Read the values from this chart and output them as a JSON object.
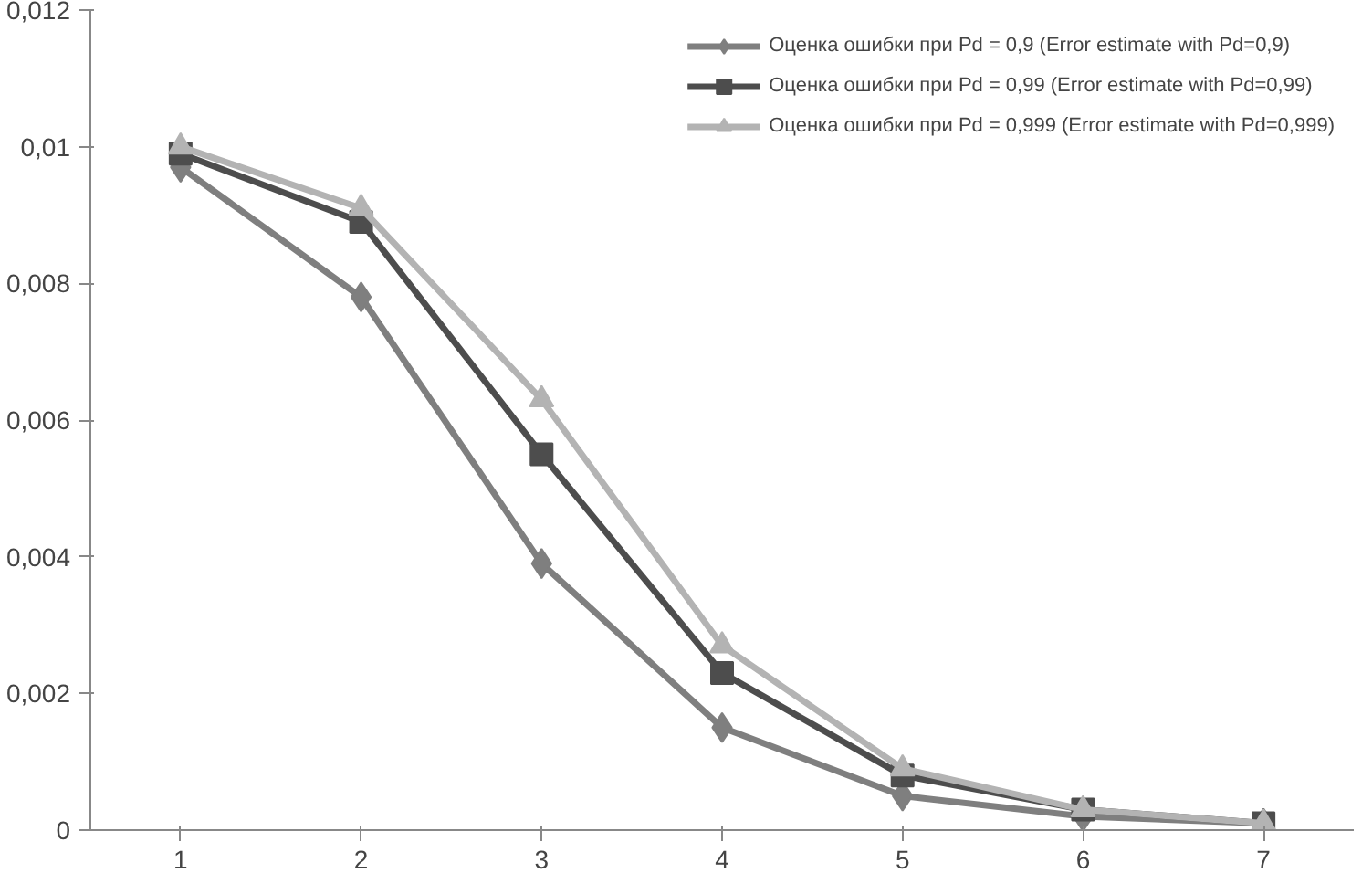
{
  "chart_data": {
    "type": "line",
    "categories": [
      "1",
      "2",
      "3",
      "4",
      "5",
      "6",
      "7"
    ],
    "series": [
      {
        "name": "Оценка ошибки при Pd = 0,9 (Error estimate with Pd=0,9)",
        "color": "#7f7f7f",
        "marker": "diamond",
        "values": [
          0.0097,
          0.0078,
          0.0039,
          0.0015,
          0.0005,
          0.0002,
          0.0001
        ]
      },
      {
        "name": "Оценка ошибки при Pd = 0,99 (Error estimate with Pd=0,99)",
        "color": "#4d4d4d",
        "marker": "square",
        "values": [
          0.0099,
          0.0089,
          0.0055,
          0.0023,
          0.0008,
          0.0003,
          0.0001
        ]
      },
      {
        "name": "Оценка ошибки при Pd = 0,999 (Error estimate with Pd=0,999)",
        "color": "#b3b3b3",
        "marker": "triangle",
        "values": [
          0.01,
          0.0091,
          0.0063,
          0.0027,
          0.0009,
          0.0003,
          0.0001
        ]
      }
    ],
    "ylim": [
      0,
      0.012
    ],
    "yticks": [
      {
        "value": 0,
        "label": "0"
      },
      {
        "value": 0.002,
        "label": "0,002"
      },
      {
        "value": 0.004,
        "label": "0,004"
      },
      {
        "value": 0.006,
        "label": "0,006"
      },
      {
        "value": 0.008,
        "label": "0,008"
      },
      {
        "value": 0.01,
        "label": "0,01"
      },
      {
        "value": 0.012,
        "label": "0,012"
      }
    ],
    "grid": false,
    "legend": "top right",
    "line_style": "solid"
  }
}
